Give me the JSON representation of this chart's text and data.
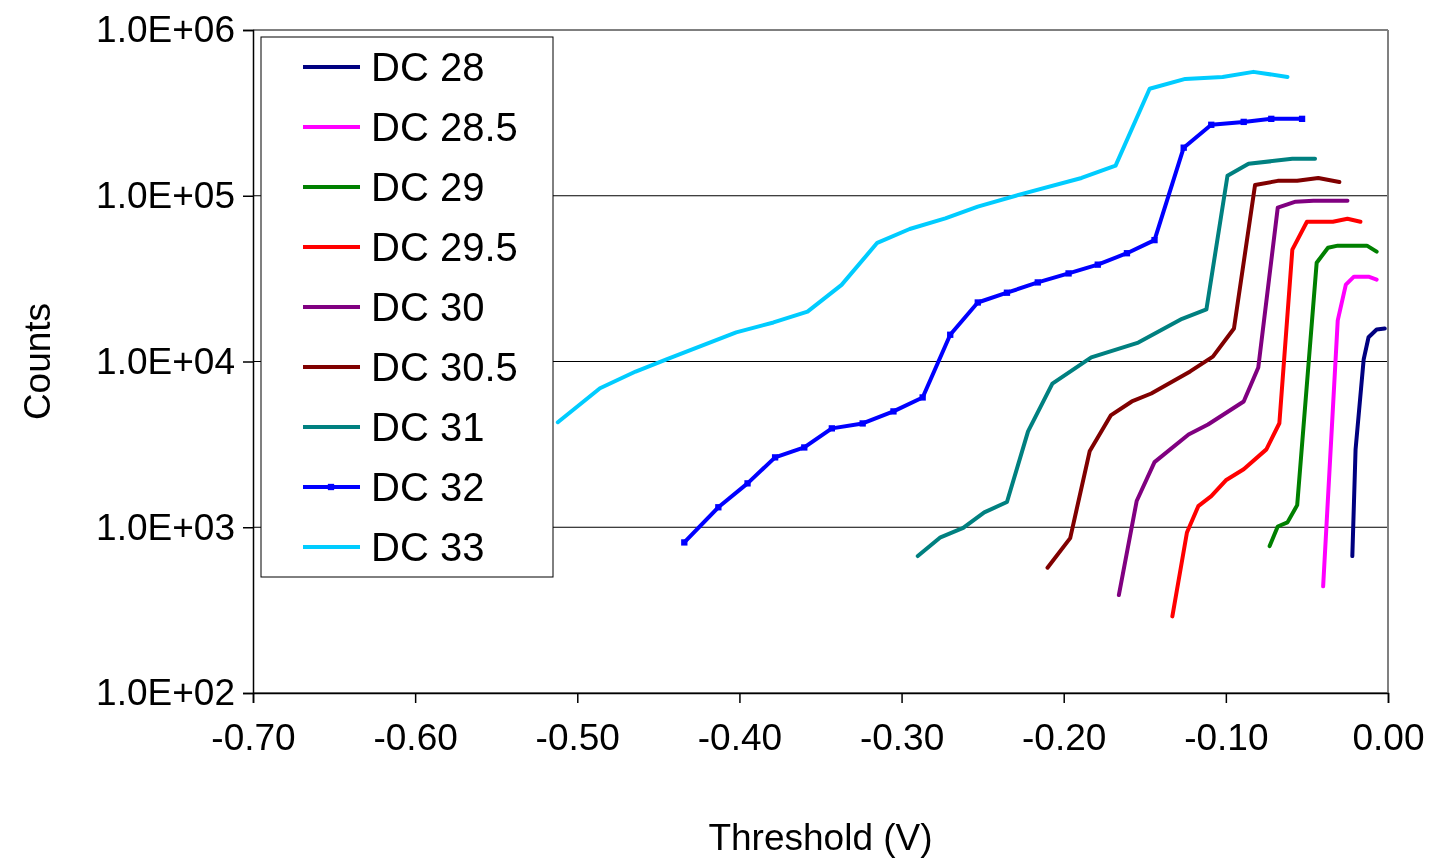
{
  "chart_data": {
    "type": "line",
    "xlabel": "Threshold (V)",
    "ylabel": "Counts",
    "xlim": [
      -0.7,
      0
    ],
    "xticks": [
      {
        "value": -0.7,
        "label": "-0.70"
      },
      {
        "value": -0.6,
        "label": "-0.60"
      },
      {
        "value": -0.5,
        "label": "-0.50"
      },
      {
        "value": -0.4,
        "label": "-0.40"
      },
      {
        "value": -0.3,
        "label": "-0.30"
      },
      {
        "value": -0.2,
        "label": "-0.20"
      },
      {
        "value": -0.1,
        "label": "-0.10"
      },
      {
        "value": 0,
        "label": "0.00"
      }
    ],
    "ylim": [
      100,
      1000000
    ],
    "yticks": [
      {
        "value": 100,
        "label": "1.0E+02"
      },
      {
        "value": 1000,
        "label": "1.0E+03"
      },
      {
        "value": 10000,
        "label": "1.0E+04"
      },
      {
        "value": 100000,
        "label": "1.0E+05"
      },
      {
        "value": 1000000,
        "label": "1.0E+06"
      }
    ],
    "log": "y",
    "grid": "y",
    "legend": "top left",
    "marker": "none",
    "line_style": "solid",
    "series": [
      {
        "name": "DC 28",
        "color": "#000080",
        "x": [
          -0.022,
          -0.02,
          -0.015,
          -0.012,
          -0.007,
          -0.002
        ],
        "values": [
          670,
          2950,
          10300,
          14000,
          15600,
          15800
        ]
      },
      {
        "name": "DC 28.5",
        "color": "#ff00ff",
        "x": [
          -0.04,
          -0.031,
          -0.026,
          -0.021,
          -0.012,
          -0.007
        ],
        "values": [
          440,
          17700,
          29100,
          32500,
          32500,
          31200
        ]
      },
      {
        "name": "DC 29",
        "color": "#008000",
        "x": [
          -0.073,
          -0.068,
          -0.062,
          -0.056,
          -0.044,
          -0.037,
          -0.031,
          -0.013,
          -0.007
        ],
        "values": [
          770,
          1010,
          1070,
          1360,
          39400,
          48600,
          50000,
          50000,
          46000
        ]
      },
      {
        "name": "DC 29.5",
        "color": "#ff0000",
        "x": [
          -0.133,
          -0.124,
          -0.117,
          -0.109,
          -0.1,
          -0.089,
          -0.075,
          -0.067,
          -0.059,
          -0.05,
          -0.034,
          -0.025,
          -0.017
        ],
        "values": [
          290,
          930,
          1340,
          1540,
          1920,
          2240,
          2950,
          4240,
          47300,
          69700,
          69700,
          72600,
          69700
        ]
      },
      {
        "name": "DC 30",
        "color": "#800080",
        "x": [
          -0.166,
          -0.155,
          -0.144,
          -0.123,
          -0.111,
          -0.089,
          -0.08,
          -0.068,
          -0.057,
          -0.046,
          -0.025
        ],
        "values": [
          390,
          1440,
          2470,
          3630,
          4170,
          5740,
          9200,
          84700,
          92100,
          93300,
          93300
        ]
      },
      {
        "name": "DC 30.5",
        "color": "#800000",
        "x": [
          -0.21,
          -0.196,
          -0.184,
          -0.171,
          -0.158,
          -0.146,
          -0.122,
          -0.108,
          -0.095,
          -0.082,
          -0.068,
          -0.056,
          -0.043,
          -0.03
        ],
        "values": [
          570,
          860,
          2870,
          4730,
          5740,
          6410,
          8710,
          10700,
          15800,
          116000,
          123000,
          123000,
          128000,
          121000
        ]
      },
      {
        "name": "DC 31",
        "color": "#008080",
        "x": [
          -0.29,
          -0.276,
          -0.262,
          -0.249,
          -0.235,
          -0.222,
          -0.207,
          -0.183,
          -0.154,
          -0.127,
          -0.112,
          -0.099,
          -0.086,
          -0.059,
          -0.045
        ],
        "values": [
          670,
          870,
          990,
          1230,
          1420,
          3790,
          7360,
          10600,
          13000,
          18100,
          20600,
          132000,
          156000,
          167000,
          167000
        ]
      },
      {
        "name": "DC 32",
        "color": "#0000ff",
        "marker": "square",
        "x": [
          -0.434,
          -0.413,
          -0.395,
          -0.378,
          -0.36,
          -0.343,
          -0.324,
          -0.305,
          -0.287,
          -0.27,
          -0.253,
          -0.235,
          -0.216,
          -0.197,
          -0.179,
          -0.161,
          -0.144,
          -0.126,
          -0.109,
          -0.089,
          -0.072,
          -0.053
        ],
        "values": [
          810,
          1320,
          1840,
          2640,
          3030,
          3950,
          4230,
          5000,
          6070,
          14500,
          22700,
          26000,
          30000,
          34000,
          38400,
          45000,
          54000,
          195000,
          268000,
          279000,
          291000,
          291000
        ]
      },
      {
        "name": "DC 33",
        "color": "#00ccff",
        "x": [
          -0.512,
          -0.486,
          -0.464,
          -0.445,
          -0.402,
          -0.379,
          -0.358,
          -0.337,
          -0.315,
          -0.295,
          -0.273,
          -0.253,
          -0.225,
          -0.189,
          -0.168,
          -0.147,
          -0.125,
          -0.102,
          -0.083,
          -0.062
        ],
        "values": [
          4300,
          6900,
          8700,
          10300,
          15000,
          17200,
          20000,
          29000,
          52000,
          63000,
          73000,
          86000,
          103000,
          128000,
          152000,
          442000,
          507000,
          521000,
          559000,
          521000
        ]
      }
    ]
  }
}
